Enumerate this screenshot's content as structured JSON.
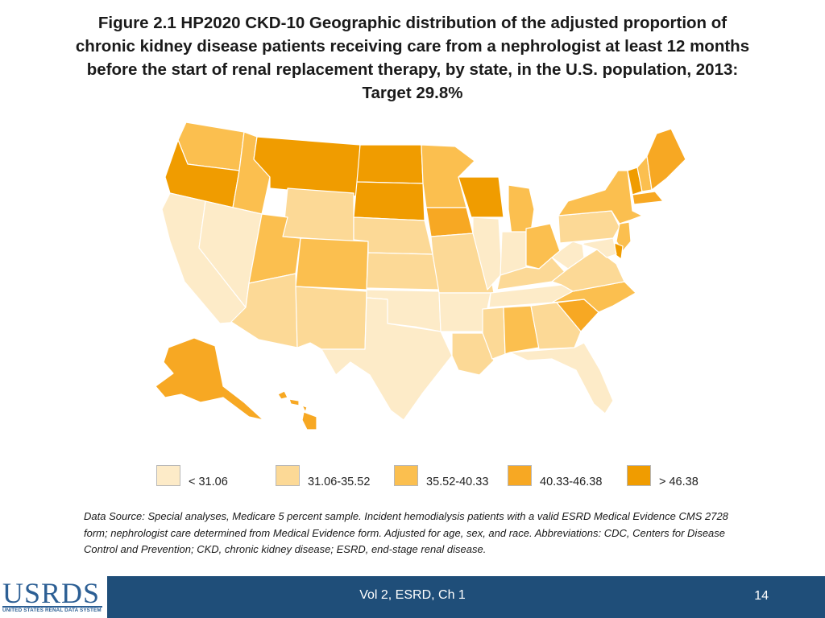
{
  "title_lines": [
    "Figure 2.1  HP2020 CKD-10 Geographic distribution of the adjusted proportion of",
    "chronic kidney disease patients receiving care from a nephrologist at least 12 months",
    "before the start of renal replacement therapy, by state, in the U.S. population, 2013:",
    "Target 29.8%"
  ],
  "legend": [
    {
      "label": "< 31.06",
      "color": "#fdebc8"
    },
    {
      "label": "31.06-35.52",
      "color": "#fcd996"
    },
    {
      "label": "35.52-40.33",
      "color": "#fbbf4f"
    },
    {
      "label": "40.33-46.38",
      "color": "#f7a823"
    },
    {
      "label": "> 46.38",
      "color": "#f09c00"
    }
  ],
  "states": {
    "WA": 3,
    "OR": 5,
    "CA": 1,
    "ID": 3,
    "NV": 1,
    "MT": 5,
    "WY": 2,
    "UT": 3,
    "AZ": 2,
    "CO": 3,
    "NM": 2,
    "ND": 5,
    "SD": 5,
    "NE": 2,
    "KS": 2,
    "OK": 1,
    "TX": 1,
    "MN": 3,
    "IA": 4,
    "MO": 2,
    "AR": 1,
    "LA": 2,
    "WI": 5,
    "IL": 1,
    "MI": 3,
    "IN": 1,
    "OH": 3,
    "KY": 2,
    "TN": 1,
    "MS": 2,
    "AL": 3,
    "GA": 2,
    "FL": 1,
    "SC": 4,
    "NC": 3,
    "VA": 2,
    "WV": 1,
    "PA": 2,
    "NY": 3,
    "VT": 5,
    "NH": 3,
    "ME": 4,
    "MA": 4,
    "NJ": 3,
    "DE": 5,
    "MD": 1,
    "AK": 4,
    "HI": 4
  },
  "source_note": "Data Source: Special analyses, Medicare 5 percent sample. Incident hemodialysis patients with a valid ESRD Medical Evidence CMS 2728 form; nephrologist care determined from Medical Evidence form. Adjusted for age, sex, and race. Abbreviations: CDC, Centers for Disease Control and Prevention; CKD, chronic kidney disease; ESRD, end-stage renal disease.",
  "footer": {
    "logo_text": "USRDS",
    "logo_subtitle": "UNITED STATES RENAL DATA SYSTEM",
    "center": "Vol 2, ESRD, Ch 1",
    "page": "14"
  }
}
